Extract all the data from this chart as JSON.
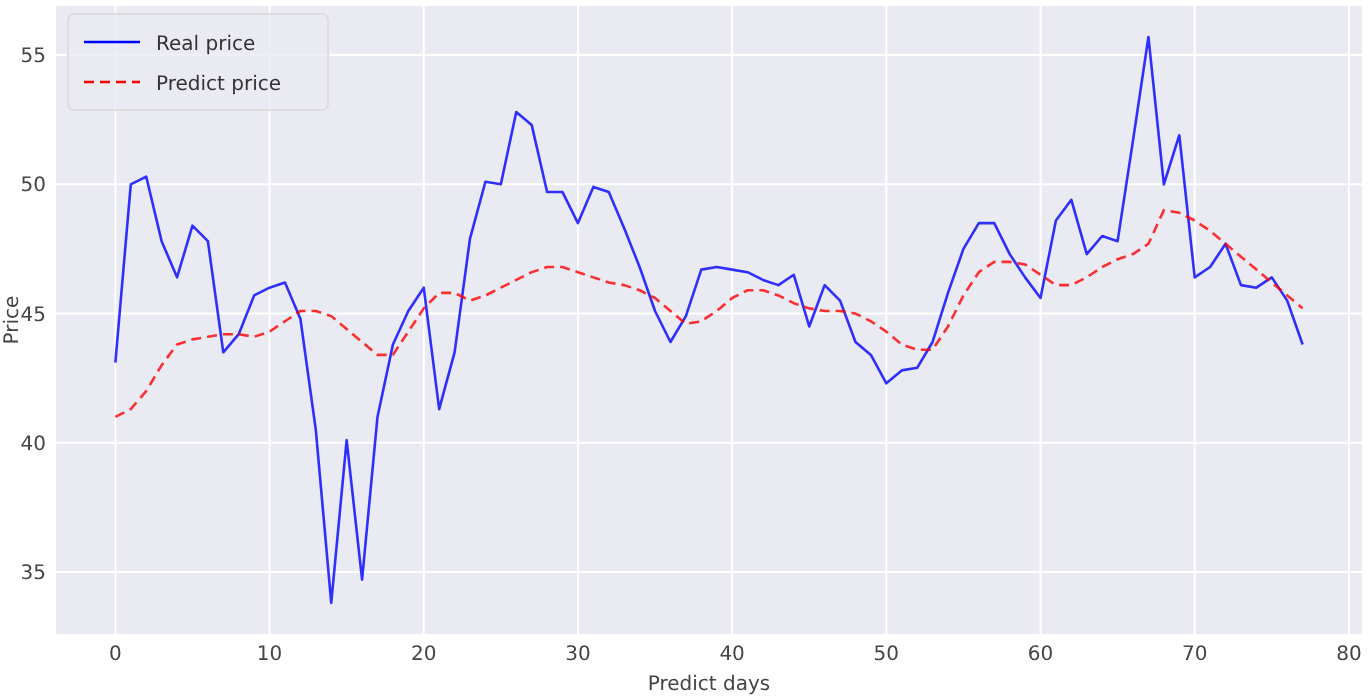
{
  "chart_data": {
    "type": "line",
    "xlabel": "Predict days",
    "ylabel": "Price",
    "x": [
      0,
      1,
      2,
      3,
      4,
      5,
      6,
      7,
      8,
      9,
      10,
      11,
      12,
      13,
      14,
      15,
      16,
      17,
      18,
      19,
      20,
      21,
      22,
      23,
      24,
      25,
      26,
      27,
      28,
      29,
      30,
      31,
      32,
      33,
      34,
      35,
      36,
      37,
      38,
      39,
      40,
      41,
      42,
      43,
      44,
      45,
      46,
      47,
      48,
      49,
      50,
      51,
      52,
      53,
      54,
      55,
      56,
      57,
      58,
      59,
      60,
      61,
      62,
      63,
      64,
      65,
      66,
      67,
      68,
      69,
      70,
      71,
      72,
      73,
      74,
      75,
      76,
      77
    ],
    "series": [
      {
        "name": "Real price",
        "color": "#0000ff",
        "line_style": "solid",
        "values": [
          43.1,
          50.0,
          50.3,
          47.8,
          46.4,
          48.4,
          47.8,
          43.5,
          44.2,
          45.7,
          46.0,
          46.2,
          44.8,
          40.5,
          33.8,
          40.1,
          34.7,
          41.0,
          43.8,
          45.1,
          46.0,
          41.3,
          43.5,
          47.9,
          50.1,
          50.0,
          52.8,
          52.3,
          49.7,
          49.7,
          48.5,
          49.9,
          49.7,
          48.3,
          46.8,
          45.1,
          43.9,
          44.9,
          46.7,
          46.8,
          46.7,
          46.6,
          46.3,
          46.1,
          46.5,
          44.5,
          46.1,
          45.5,
          43.9,
          43.4,
          42.3,
          42.8,
          42.9,
          43.9,
          45.8,
          47.5,
          48.5,
          48.5,
          47.3,
          46.4,
          45.6,
          48.6,
          49.4,
          47.3,
          48.0,
          47.8,
          51.7,
          55.7,
          50.0,
          51.9,
          46.4,
          46.8,
          47.7,
          46.1,
          46.0,
          46.4,
          45.5,
          43.8
        ]
      },
      {
        "name": "Predict price",
        "color": "#ff0000",
        "line_style": "dashed",
        "values": [
          41.0,
          41.3,
          42.0,
          43.0,
          43.8,
          44.0,
          44.1,
          44.2,
          44.2,
          44.1,
          44.3,
          44.7,
          45.1,
          45.1,
          44.9,
          44.4,
          43.9,
          43.4,
          43.4,
          44.3,
          45.2,
          45.8,
          45.8,
          45.5,
          45.7,
          46.0,
          46.3,
          46.6,
          46.8,
          46.8,
          46.6,
          46.4,
          46.2,
          46.1,
          45.9,
          45.6,
          45.1,
          44.6,
          44.7,
          45.1,
          45.6,
          45.9,
          45.9,
          45.7,
          45.4,
          45.2,
          45.1,
          45.1,
          45.0,
          44.7,
          44.3,
          43.8,
          43.6,
          43.6,
          44.5,
          45.7,
          46.6,
          47.0,
          47.0,
          46.9,
          46.5,
          46.1,
          46.1,
          46.4,
          46.8,
          47.1,
          47.3,
          47.7,
          49.0,
          48.9,
          48.6,
          48.2,
          47.7,
          47.2,
          46.7,
          46.2,
          45.7,
          45.2
        ]
      }
    ],
    "xlim": [
      -3.85,
      80.85
    ],
    "ylim": [
      32.6,
      56.9
    ],
    "xticks": [
      0,
      10,
      20,
      30,
      40,
      50,
      60,
      70,
      80
    ],
    "yticks": [
      35,
      40,
      45,
      50,
      55
    ],
    "grid": true,
    "legend": "top left",
    "marker": "none"
  }
}
